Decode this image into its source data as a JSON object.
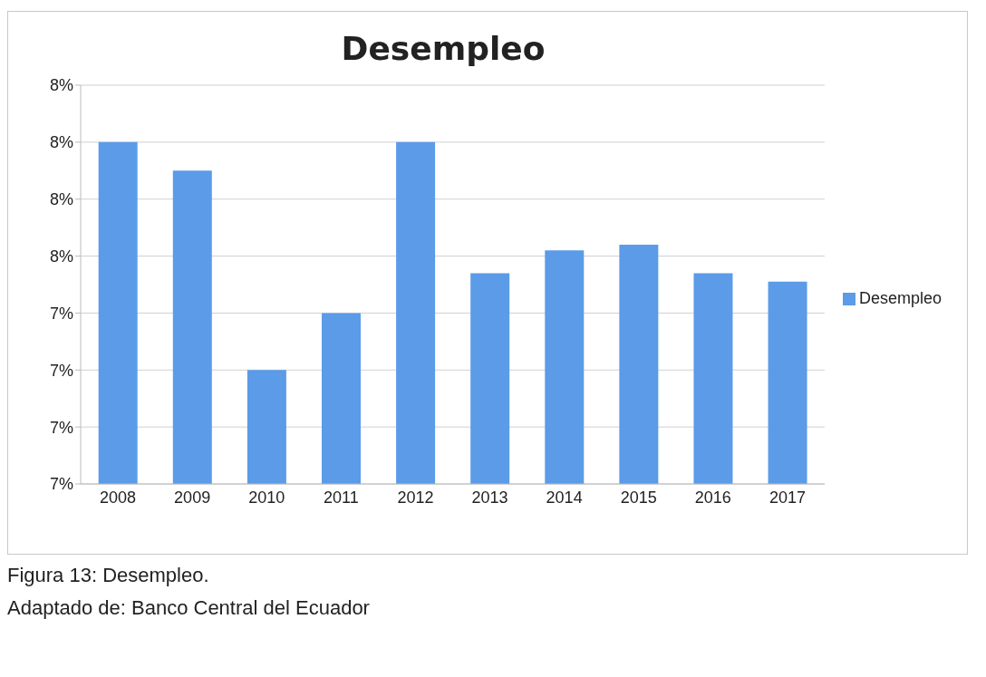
{
  "chart_data": {
    "type": "bar",
    "title": "Desempleo",
    "categories": [
      "2008",
      "2009",
      "2010",
      "2011",
      "2012",
      "2013",
      "2014",
      "2015",
      "2016",
      "2017"
    ],
    "series": [
      {
        "name": "Desempleo",
        "color": "#5b9be8",
        "values": [
          8.0,
          7.9,
          7.2,
          7.4,
          8.0,
          7.54,
          7.62,
          7.64,
          7.54,
          7.51
        ]
      }
    ],
    "ylim": [
      6.8,
      8.2
    ],
    "yticks": [
      {
        "value": 6.8,
        "label": "7%"
      },
      {
        "value": 7.0,
        "label": "7%"
      },
      {
        "value": 7.2,
        "label": "7%"
      },
      {
        "value": 7.4,
        "label": "7%"
      },
      {
        "value": 7.6,
        "label": "8%"
      },
      {
        "value": 7.8,
        "label": "8%"
      },
      {
        "value": 8.0,
        "label": "8%"
      },
      {
        "value": 8.2,
        "label": "8%"
      }
    ],
    "grid": "y",
    "legend": "right",
    "annotations": [
      "Figura 13: Desempleo.",
      "Adaptado de: Banco Central del Ecuador"
    ]
  }
}
